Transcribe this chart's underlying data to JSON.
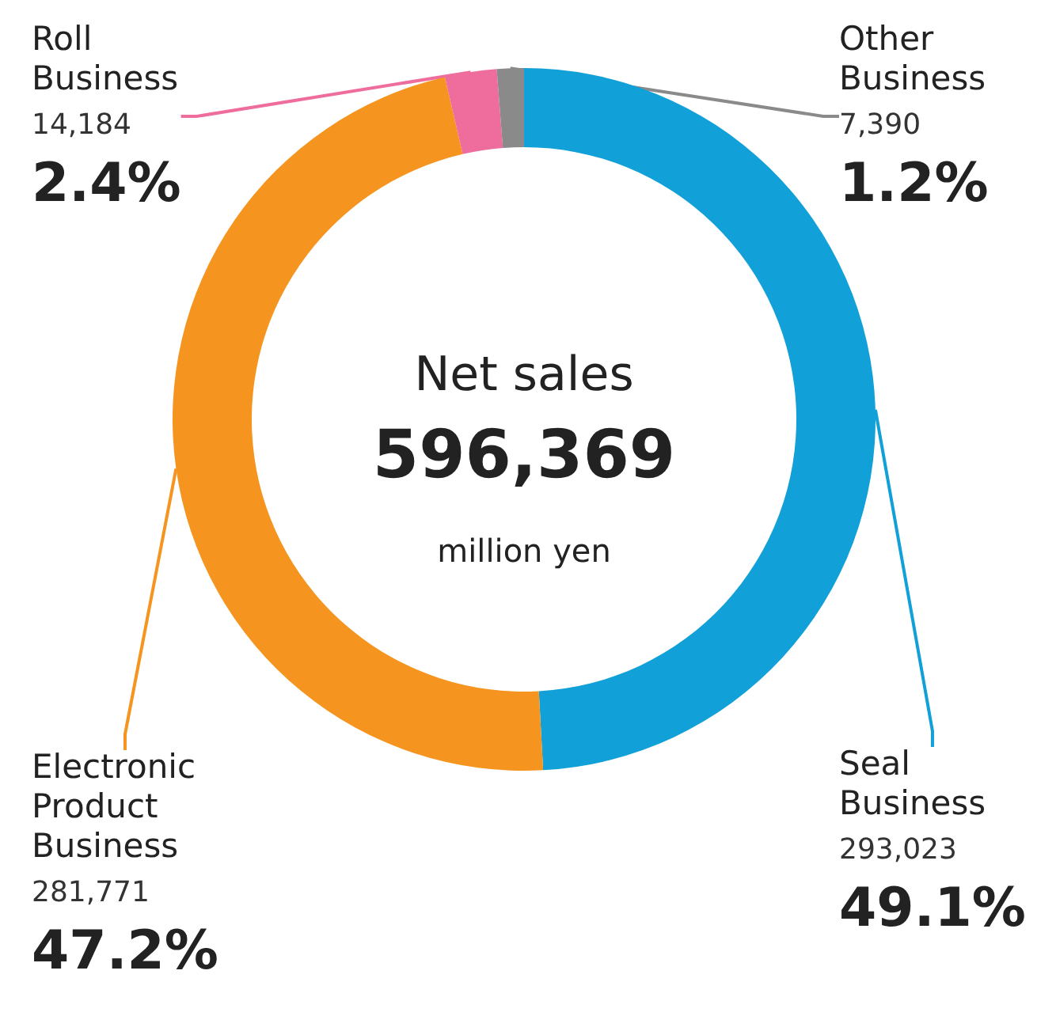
{
  "chart_data": {
    "type": "donut",
    "title": "Net sales",
    "subtitle": "596,369",
    "annotations": [
      "million yen"
    ],
    "categories": [
      "Seal Business",
      "Electronic Product Business",
      "Roll Business",
      "Other Business"
    ],
    "values": [
      293023,
      281771,
      14184,
      7390
    ],
    "colors": [
      "#12a0d8",
      "#f5951f",
      "#ef6d9c",
      "#8a8a8a"
    ],
    "value_labels": [
      "293,023\n49.1%",
      "281,771\n47.2%",
      "14,184\n2.4%",
      "7,390\n1.2%"
    ],
    "legend": false
  }
}
